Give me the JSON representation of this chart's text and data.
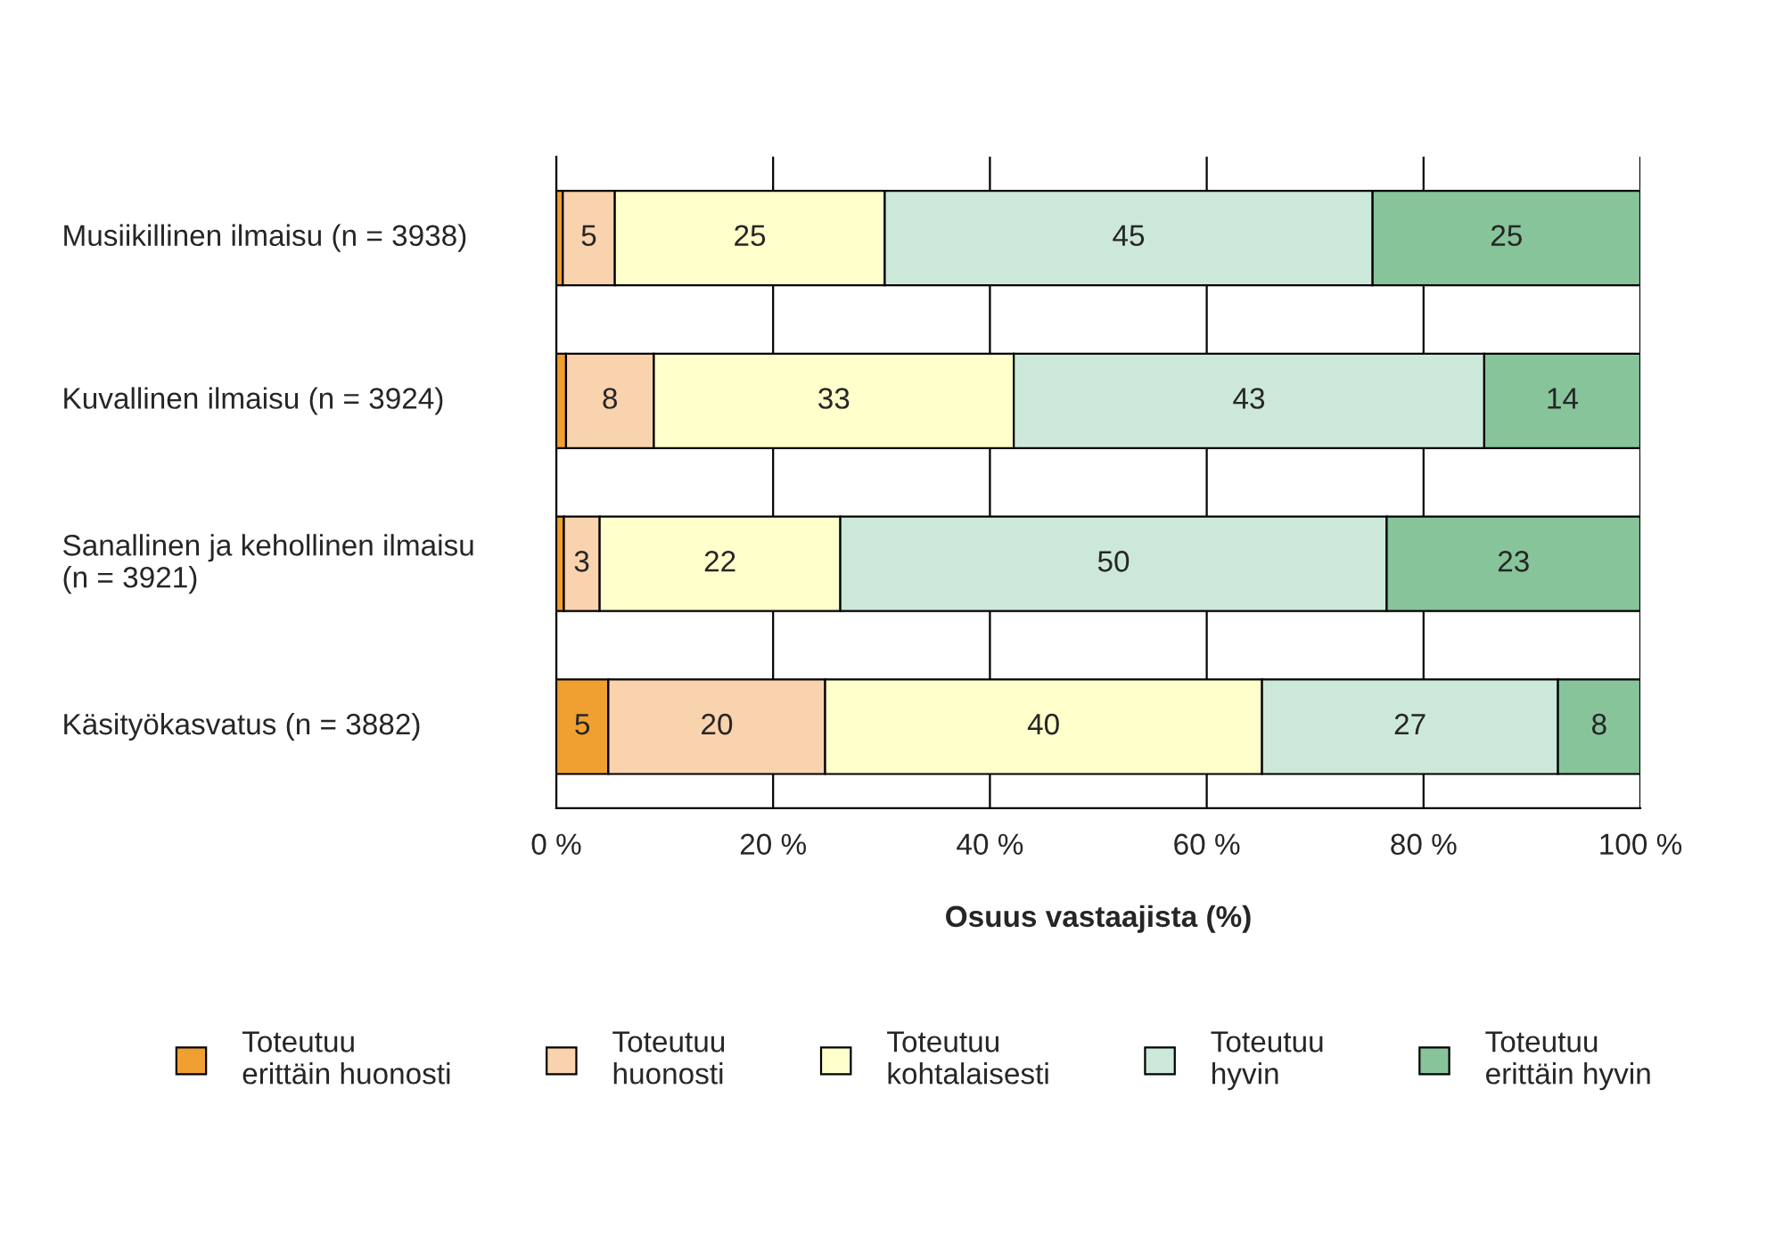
{
  "chart_data": {
    "type": "bar",
    "orientation": "horizontal",
    "stacked": true,
    "categories": [
      "Musiikillinen ilmaisu (n = 3938)",
      "Kuvallinen ilmaisu (n = 3924)",
      "Sanallinen ja kehollinen ilmaisu\n(n = 3921)",
      "Käsityökasvatus (n = 3882)"
    ],
    "series": [
      {
        "name": "Toteutuu\nerittäin huonosti",
        "color": "#f0a030",
        "values": [
          0.6,
          0.9,
          0.7,
          4.8
        ],
        "value_labels": [
          null,
          null,
          null,
          "5"
        ]
      },
      {
        "name": "Toteutuu\nhuonosti",
        "color": "#f9d2ae",
        "values": [
          4.8,
          8.1,
          3.3,
          20.0
        ],
        "value_labels": [
          "5",
          "8",
          "3",
          "20"
        ]
      },
      {
        "name": "Toteutuu\nkohtalaisesti",
        "color": "#ffffcc",
        "values": [
          24.9,
          33.2,
          22.2,
          40.3
        ],
        "value_labels": [
          "25",
          "33",
          "22",
          "40"
        ]
      },
      {
        "name": "Toteutuu\nhyvin",
        "color": "#cce8d9",
        "values": [
          45.0,
          43.4,
          50.4,
          27.3
        ],
        "value_labels": [
          "45",
          "43",
          "50",
          "27"
        ]
      },
      {
        "name": "Toteutuu\nerittäin hyvin",
        "color": "#87c49a",
        "values": [
          24.7,
          14.4,
          23.4,
          7.6
        ],
        "value_labels": [
          "25",
          "14",
          "23",
          "8"
        ]
      }
    ],
    "xlabel": "Osuus vastaajista (%)",
    "xlim": [
      0,
      100
    ],
    "xticks": [
      {
        "value": 0,
        "label": "0 %"
      },
      {
        "value": 20,
        "label": "20 %"
      },
      {
        "value": 40,
        "label": "40 %"
      },
      {
        "value": 60,
        "label": "60 %"
      },
      {
        "value": 80,
        "label": "80 %"
      },
      {
        "value": 100,
        "label": "100 %"
      }
    ],
    "grid": "x",
    "legend": "bottom"
  }
}
